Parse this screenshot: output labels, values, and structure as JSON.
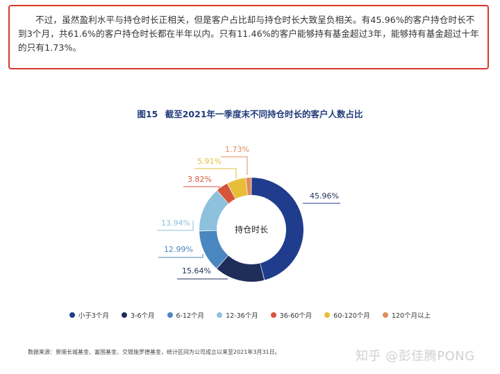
{
  "article": {
    "paragraph": "不过，虽然盈利水平与持仓时长正相关，但是客户占比却与持仓时长大致呈负相关。有45.96%的客户持仓时长不到3个月，共61.6%的客户持仓时长都在半年以内。只有11.46%的客户能够持有基金超过3年，能够持有基金超过十年的只有1.73%。"
  },
  "figure": {
    "number": "图15",
    "title": "截至2021年一季度末不同持仓时长的客户人数占比",
    "source": "数据来源：景顺长城基金、富国基金、交银施罗德基金，统计区间为公司成立以来至2021年3月31日。"
  },
  "watermark": "知乎 @彭佳腾PONG",
  "chart_data": {
    "type": "pie",
    "donut": true,
    "center_label": "持仓时长",
    "legend_position": "bottom",
    "categories": [
      "小于3个月",
      "3-6个月",
      "6-12个月",
      "12-36个月",
      "36-60个月",
      "60-120个月",
      "120个月以上"
    ],
    "values": [
      45.96,
      15.64,
      12.99,
      13.94,
      3.82,
      5.91,
      1.73
    ],
    "labels": [
      "45.96%",
      "15.64%",
      "12.99%",
      "13.94%",
      "3.82%",
      "5.91%",
      "1.73%"
    ],
    "colors": [
      "#1f3d8c",
      "#1e2d5a",
      "#4a86c0",
      "#8ec1dc",
      "#d4553a",
      "#e6be3a",
      "#e08b5a"
    ]
  }
}
